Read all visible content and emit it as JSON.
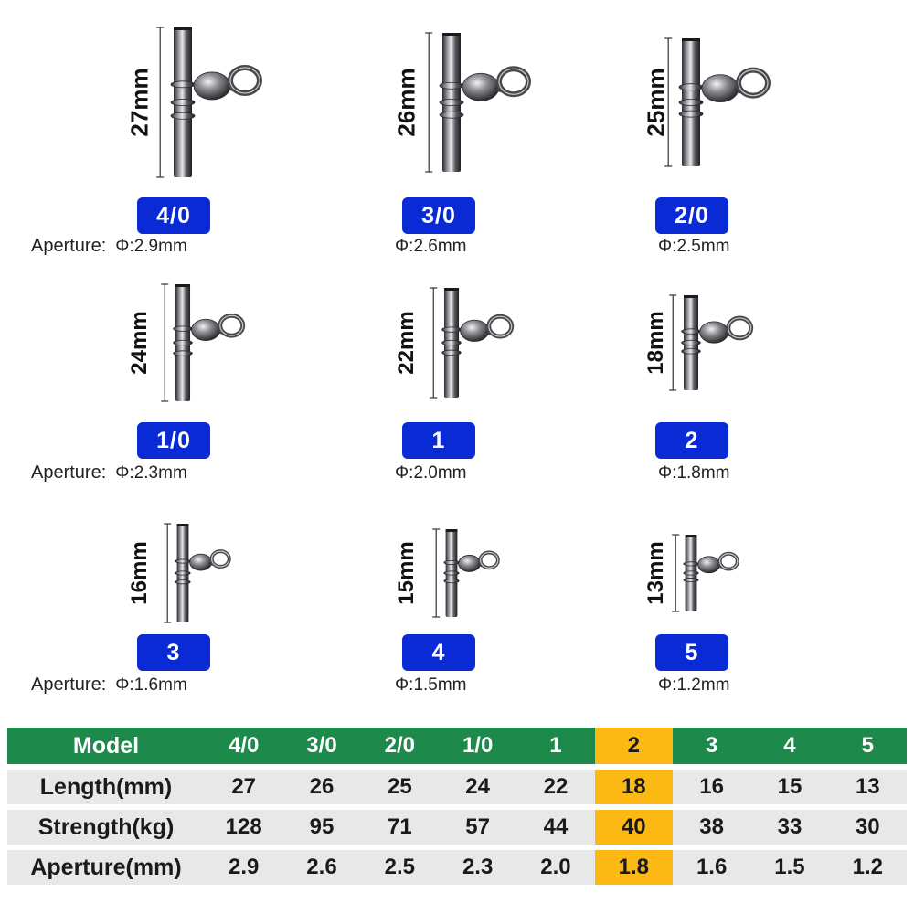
{
  "aperture_label": "Aperture:",
  "products": [
    {
      "length": "27mm",
      "model": "4/0",
      "aperture": "Φ:2.9mm",
      "show_label": true
    },
    {
      "length": "26mm",
      "model": "3/0",
      "aperture": "Φ:2.6mm",
      "show_label": false
    },
    {
      "length": "25mm",
      "model": "2/0",
      "aperture": "Φ:2.5mm",
      "show_label": false
    },
    {
      "length": "24mm",
      "model": "1/0",
      "aperture": "Φ:2.3mm",
      "show_label": true
    },
    {
      "length": "22mm",
      "model": "1",
      "aperture": "Φ:2.0mm",
      "show_label": false
    },
    {
      "length": "18mm",
      "model": "2",
      "aperture": "Φ:1.8mm",
      "show_label": false
    },
    {
      "length": "16mm",
      "model": "3",
      "aperture": "Φ:1.6mm",
      "show_label": true
    },
    {
      "length": "15mm",
      "model": "4",
      "aperture": "Φ:1.5mm",
      "show_label": false
    },
    {
      "length": "13mm",
      "model": "5",
      "aperture": "Φ:1.2mm",
      "show_label": false
    }
  ],
  "table": {
    "header_label": "Model",
    "models": [
      "4/0",
      "3/0",
      "2/0",
      "1/0",
      "1",
      "2",
      "3",
      "4",
      "5"
    ],
    "highlight_model": "2",
    "rows": [
      {
        "label": "Length(mm)",
        "values": [
          "27",
          "26",
          "25",
          "24",
          "22",
          "18",
          "16",
          "15",
          "13"
        ]
      },
      {
        "label": "Strength(kg)",
        "values": [
          "128",
          "95",
          "71",
          "57",
          "44",
          "40",
          "38",
          "33",
          "30"
        ]
      },
      {
        "label": "Aperture(mm)",
        "values": [
          "2.9",
          "2.6",
          "2.5",
          "2.3",
          "2.0",
          "1.8",
          "1.6",
          "1.5",
          "1.2"
        ]
      }
    ]
  },
  "colors": {
    "badge": "#0a2ad6",
    "table_header": "#1d8a4b",
    "table_row": "#e8e8e8",
    "highlight": "#fcb813"
  }
}
